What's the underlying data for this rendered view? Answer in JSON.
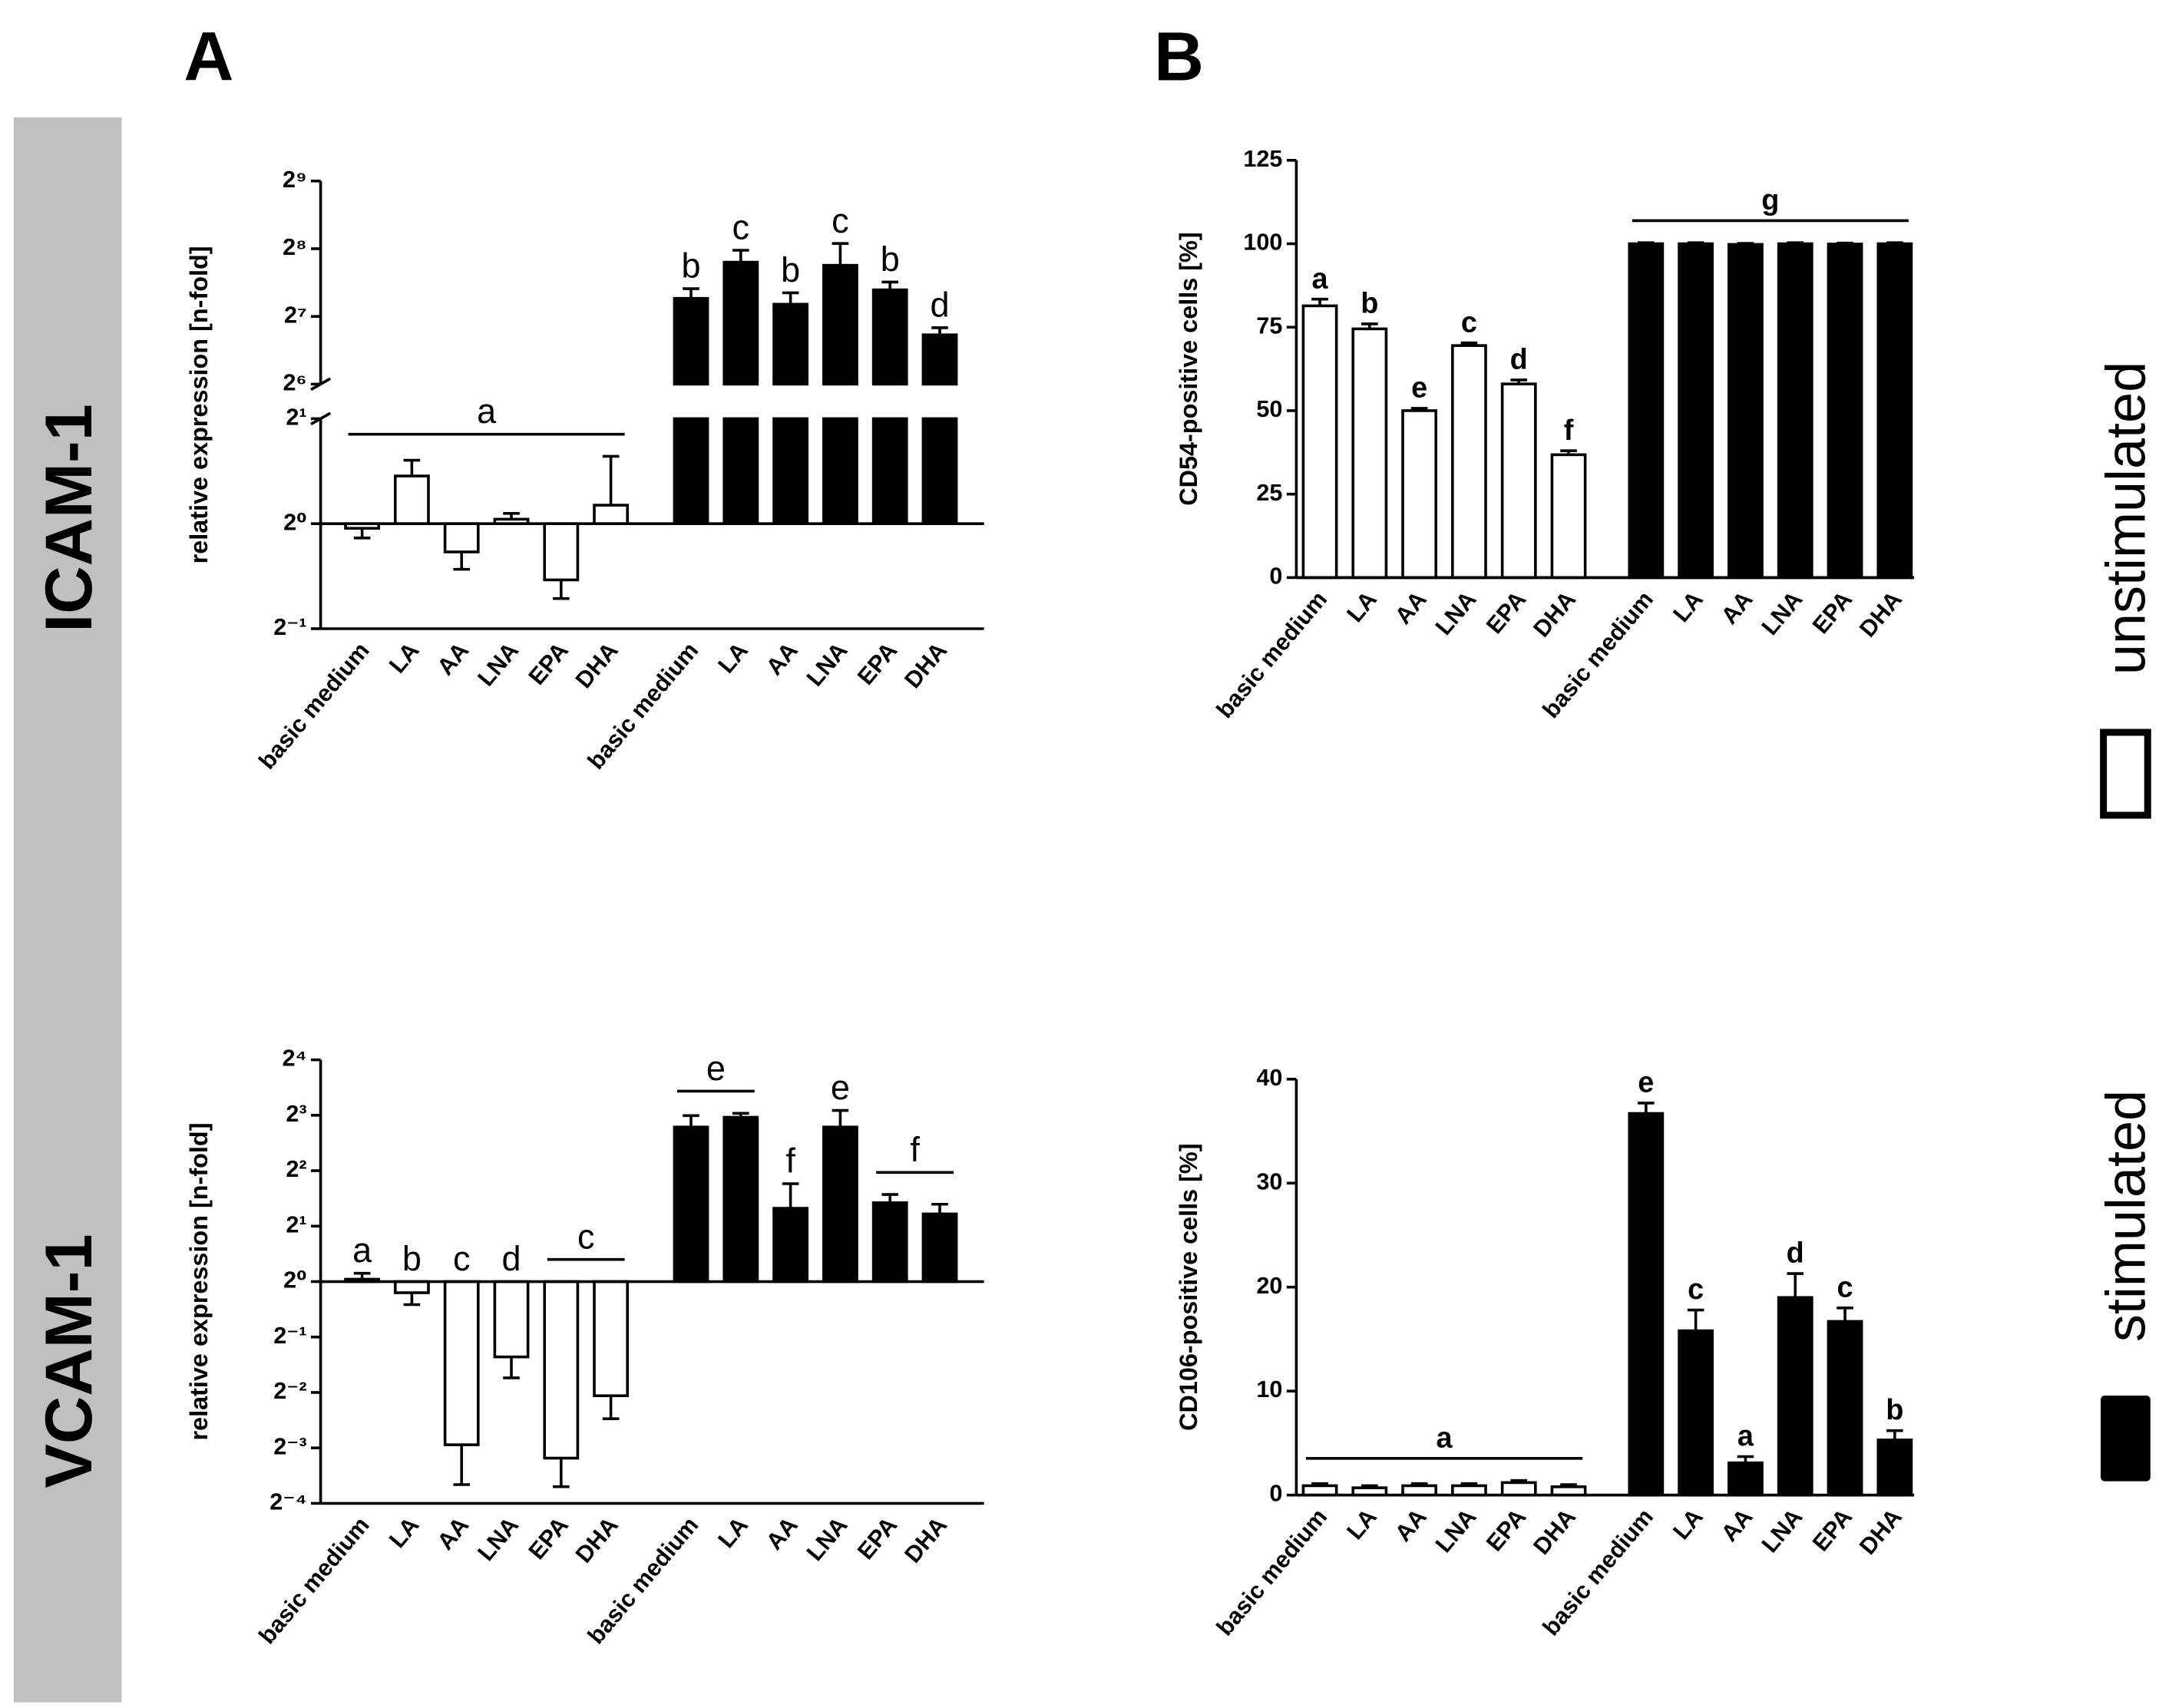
{
  "labels": {
    "panel_a": "A",
    "panel_b": "B",
    "row_1": "ICAM-1",
    "row_2": "VCAM-1"
  },
  "chart_data": [
    {
      "type": "bar",
      "ylabel": "relative expression [n-fold]",
      "log_base": 2,
      "categories": [
        "basic medium",
        "LA",
        "AA",
        "LNA",
        "EPA",
        "DHA"
      ],
      "series": [
        {
          "name": "unstimulated",
          "color": "#ffffff",
          "values": [
            0.97,
            1.37,
            0.83,
            1.03,
            0.69,
            1.13
          ],
          "errors": [
            0.06,
            0.15,
            0.09,
            0.04,
            0.08,
            0.43
          ]
        },
        {
          "name": "stimulated",
          "color": "#000000",
          "values": [
            154,
            223,
            145,
            216,
            168,
            106
          ],
          "errors": [
            16,
            29,
            18,
            54,
            14,
            8
          ]
        }
      ],
      "ylim": [
        0.5,
        512
      ],
      "axis_break": [
        2,
        64
      ],
      "yticks": [
        {
          "value": 0.5,
          "label": "2⁻¹"
        },
        {
          "value": 1,
          "label": "2⁰"
        },
        {
          "value": 2,
          "label": "2¹"
        },
        {
          "value": 64,
          "label": "2⁶"
        },
        {
          "value": 128,
          "label": "2⁷"
        },
        {
          "value": 256,
          "label": "2⁸"
        },
        {
          "value": 512,
          "label": "2⁹"
        }
      ],
      "annotations": [
        {
          "text": "a",
          "series": 0,
          "span": [
            0,
            5
          ]
        },
        {
          "text": "b",
          "series": 1,
          "span": [
            0,
            0
          ]
        },
        {
          "text": "c",
          "series": 1,
          "span": [
            1,
            1
          ]
        },
        {
          "text": "b",
          "series": 1,
          "span": [
            2,
            2
          ]
        },
        {
          "text": "c",
          "series": 1,
          "span": [
            3,
            3
          ]
        },
        {
          "text": "b",
          "series": 1,
          "span": [
            4,
            4
          ]
        },
        {
          "text": "d",
          "series": 1,
          "span": [
            5,
            5
          ]
        }
      ]
    },
    {
      "type": "bar",
      "ylabel": "CD54-positive cells [%]",
      "categories": [
        "basic medium",
        "LA",
        "AA",
        "LNA",
        "EPA",
        "DHA"
      ],
      "series": [
        {
          "name": "unstimulated",
          "color": "#ffffff",
          "values": [
            81.4,
            74.5,
            50,
            69.5,
            58,
            36.8
          ],
          "errors": [
            2,
            1.5,
            0.7,
            0.8,
            1.2,
            1.2
          ]
        },
        {
          "name": "stimulated",
          "color": "#000000",
          "values": [
            100,
            100,
            99.8,
            100,
            99.9,
            100
          ],
          "errors": [
            0.3,
            0.3,
            0.3,
            0.3,
            0.3,
            0.3
          ]
        }
      ],
      "ylim": [
        0,
        125
      ],
      "yticks": [
        0,
        25,
        50,
        75,
        100,
        125
      ],
      "annotations": [
        {
          "text": "a",
          "series": 0,
          "span": [
            0,
            0
          ]
        },
        {
          "text": "b",
          "series": 0,
          "span": [
            1,
            1
          ]
        },
        {
          "text": "e",
          "series": 0,
          "span": [
            2,
            2
          ]
        },
        {
          "text": "c",
          "series": 0,
          "span": [
            3,
            3
          ]
        },
        {
          "text": "d",
          "series": 0,
          "span": [
            4,
            4
          ]
        },
        {
          "text": "f",
          "series": 0,
          "span": [
            5,
            5
          ]
        },
        {
          "text": "g",
          "series": 1,
          "span": [
            0,
            5
          ]
        }
      ]
    },
    {
      "type": "bar",
      "ylabel": "relative expression [n-fold]",
      "log_base": 2,
      "categories": [
        "basic medium",
        "LA",
        "AA",
        "LNA",
        "EPA",
        "DHA"
      ],
      "series": [
        {
          "name": "unstimulated",
          "color": "#ffffff",
          "values": [
            1.03,
            0.87,
            0.13,
            0.39,
            0.11,
            0.24
          ],
          "errors": [
            0.08,
            0.12,
            0.051,
            0.09,
            0.033,
            0.06
          ]
        },
        {
          "name": "stimulated",
          "color": "#000000",
          "values": [
            6.9,
            7.8,
            2.5,
            6.9,
            2.68,
            2.33
          ],
          "errors": [
            1.06,
            0.4,
            0.9,
            1.6,
            0.29,
            0.3
          ]
        }
      ],
      "ylim": [
        0.0625,
        16
      ],
      "yticks": [
        {
          "value": 0.0625,
          "label": "2⁻⁴"
        },
        {
          "value": 0.125,
          "label": "2⁻³"
        },
        {
          "value": 0.25,
          "label": "2⁻²"
        },
        {
          "value": 0.5,
          "label": "2⁻¹"
        },
        {
          "value": 1,
          "label": "2⁰"
        },
        {
          "value": 2,
          "label": "2¹"
        },
        {
          "value": 4,
          "label": "2²"
        },
        {
          "value": 8,
          "label": "2³"
        },
        {
          "value": 16,
          "label": "2⁴"
        }
      ],
      "annotations": [
        {
          "text": "a",
          "series": 0,
          "span": [
            0,
            0
          ]
        },
        {
          "text": "b",
          "series": 0,
          "span": [
            1,
            1
          ]
        },
        {
          "text": "c",
          "series": 0,
          "span": [
            2,
            2
          ]
        },
        {
          "text": "d",
          "series": 0,
          "span": [
            3,
            3
          ]
        },
        {
          "text": "c",
          "series": 0,
          "span": [
            4,
            5
          ]
        },
        {
          "text": "e",
          "series": 1,
          "span": [
            0,
            1
          ]
        },
        {
          "text": "f",
          "series": 1,
          "span": [
            2,
            2
          ]
        },
        {
          "text": "e",
          "series": 1,
          "span": [
            3,
            3
          ]
        },
        {
          "text": "f",
          "series": 1,
          "span": [
            4,
            5
          ]
        }
      ]
    },
    {
      "type": "bar",
      "ylabel": "CD106-positive cells [%]",
      "categories": [
        "basic medium",
        "LA",
        "AA",
        "LNA",
        "EPA",
        "DHA"
      ],
      "series": [
        {
          "name": "unstimulated",
          "color": "#ffffff",
          "values": [
            0.9,
            0.7,
            0.9,
            0.9,
            1.2,
            0.8
          ],
          "errors": [
            0.2,
            0.2,
            0.2,
            0.2,
            0.2,
            0.2
          ]
        },
        {
          "name": "stimulated",
          "color": "#000000",
          "values": [
            36.7,
            15.8,
            3.1,
            19,
            16.7,
            5.3
          ],
          "errors": [
            1,
            2,
            0.6,
            2.3,
            1.3,
            0.9
          ]
        }
      ],
      "ylim": [
        0,
        40
      ],
      "yticks": [
        0,
        10,
        20,
        30,
        40
      ],
      "annotations": [
        {
          "text": "a",
          "series": 0,
          "span": [
            0,
            5
          ]
        },
        {
          "text": "e",
          "series": 1,
          "span": [
            0,
            0
          ]
        },
        {
          "text": "c",
          "series": 1,
          "span": [
            1,
            1
          ]
        },
        {
          "text": "a",
          "series": 1,
          "span": [
            2,
            2
          ]
        },
        {
          "text": "d",
          "series": 1,
          "span": [
            3,
            3
          ]
        },
        {
          "text": "c",
          "series": 1,
          "span": [
            4,
            4
          ]
        },
        {
          "text": "b",
          "series": 1,
          "span": [
            5,
            5
          ]
        }
      ]
    }
  ]
}
